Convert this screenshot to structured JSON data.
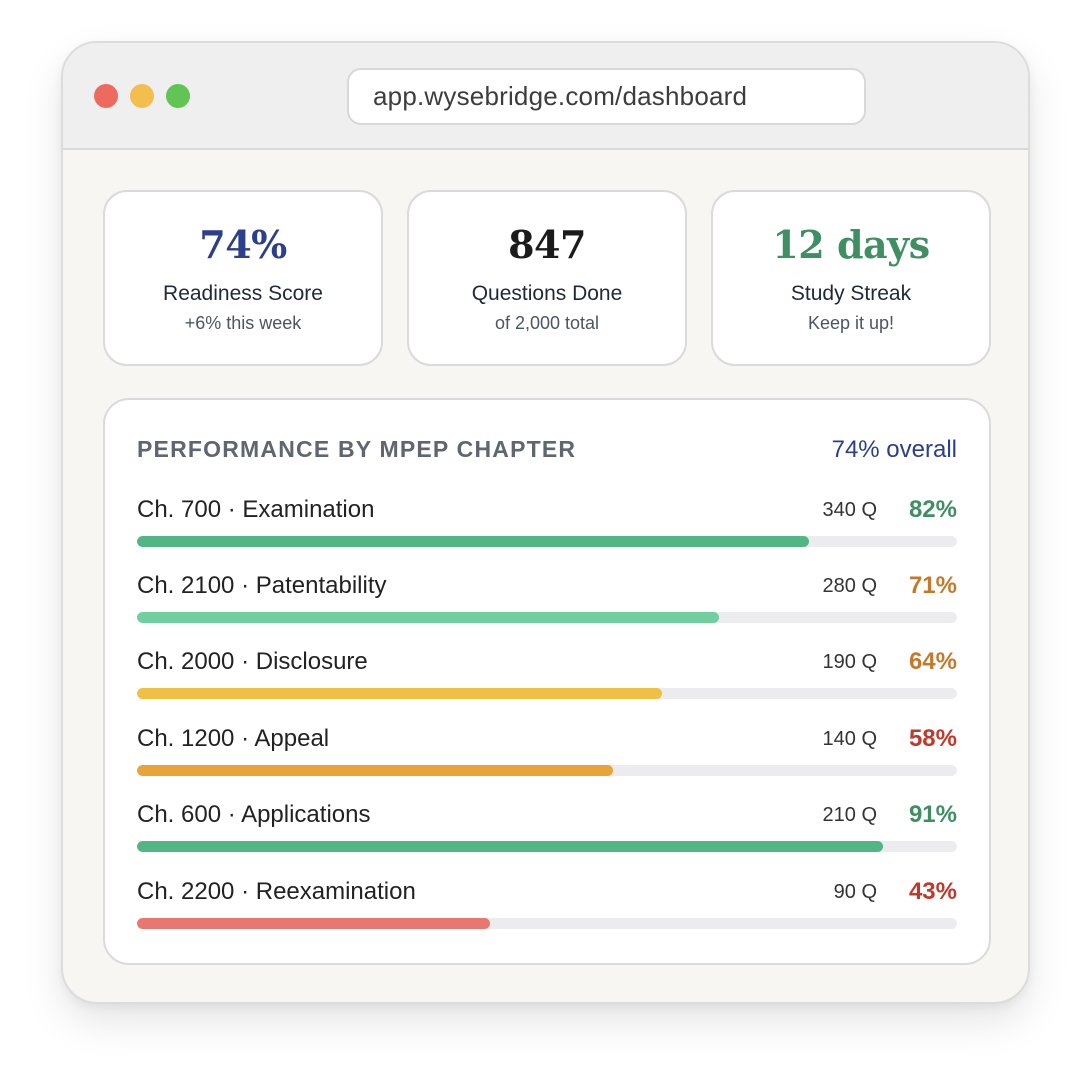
{
  "browser": {
    "url": "app.wysebridge.com/dashboard"
  },
  "stats": [
    {
      "value": "74%",
      "label": "Readiness Score",
      "sub": "+6% this week",
      "color": "#2b3f8a"
    },
    {
      "value": "847",
      "label": "Questions Done",
      "sub": "of 2,000 total",
      "color": "#1b1b1b"
    },
    {
      "value": "12 days",
      "label": "Study Streak",
      "sub": "Keep it up!",
      "color": "#3f8f63"
    }
  ],
  "performance": {
    "title": "PERFORMANCE BY MPEP CHAPTER",
    "overall": "74% overall",
    "overall_color": "#2b3f8a",
    "chapters": [
      {
        "name": "Ch. 700 · Examination",
        "questions": "340 Q",
        "percent_label": "82%",
        "percent": 82,
        "bar_color": "#52b584",
        "text_color": "#3f8f63"
      },
      {
        "name": "Ch. 2100 · Patentability",
        "questions": "280 Q",
        "percent_label": "71%",
        "percent": 71,
        "bar_color": "#6fcf9f",
        "text_color": "#c47a2a"
      },
      {
        "name": "Ch. 2000 · Disclosure",
        "questions": "190 Q",
        "percent_label": "64%",
        "percent": 64,
        "bar_color": "#efc043",
        "text_color": "#c47a2a"
      },
      {
        "name": "Ch. 1200 · Appeal",
        "questions": "140 Q",
        "percent_label": "58%",
        "percent": 58,
        "bar_color": "#e8a436",
        "text_color": "#c0392b"
      },
      {
        "name": "Ch. 600 · Applications",
        "questions": "210 Q",
        "percent_label": "91%",
        "percent": 91,
        "bar_color": "#52b584",
        "text_color": "#3f8f63"
      },
      {
        "name": "Ch. 2200 · Reexamination",
        "questions": "90 Q",
        "percent_label": "43%",
        "percent": 43,
        "bar_color": "#e8786f",
        "text_color": "#c0392b"
      }
    ]
  }
}
